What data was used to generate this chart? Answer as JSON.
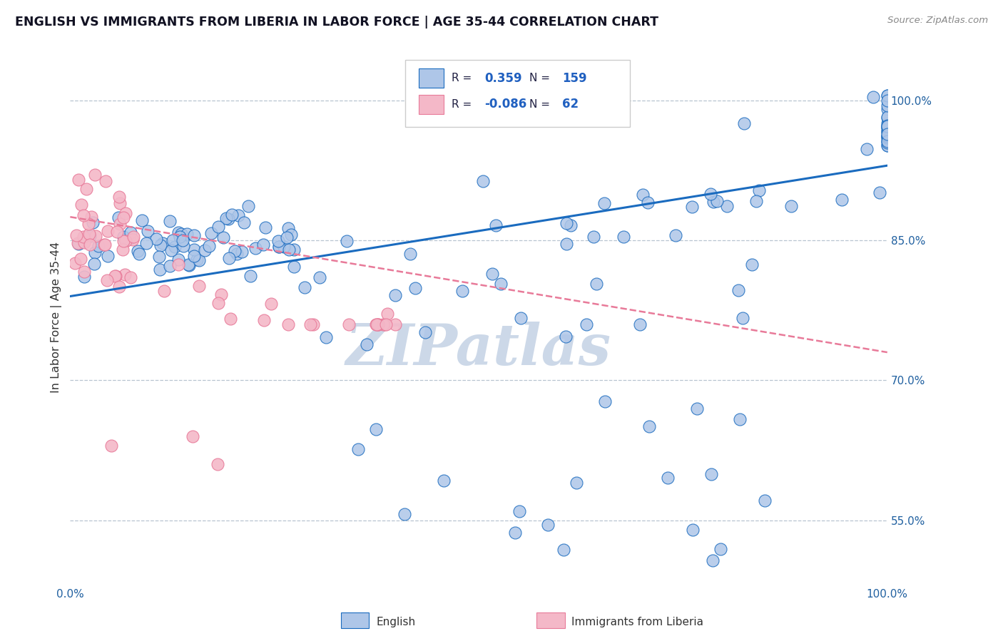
{
  "title": "ENGLISH VS IMMIGRANTS FROM LIBERIA IN LABOR FORCE | AGE 35-44 CORRELATION CHART",
  "source_text": "Source: ZipAtlas.com",
  "ylabel": "In Labor Force | Age 35-44",
  "xlim": [
    0.0,
    1.0
  ],
  "ylim": [
    0.48,
    1.055
  ],
  "ytick_labels": [
    "55.0%",
    "70.0%",
    "85.0%",
    "100.0%"
  ],
  "ytick_values": [
    0.55,
    0.7,
    0.85,
    1.0
  ],
  "english_color": "#aec6e8",
  "liberia_color": "#f4b8c8",
  "trend_english_color": "#1a6bbf",
  "trend_liberia_color": "#e87a99",
  "watermark_text": "ZIPatlas",
  "watermark_color": "#ccd8e8",
  "english_trend_x0": 0.0,
  "english_trend_y0": 0.79,
  "english_trend_x1": 1.0,
  "english_trend_y1": 0.93,
  "liberia_trend_x0": 0.0,
  "liberia_trend_y0": 0.875,
  "liberia_trend_x1": 1.0,
  "liberia_trend_y1": 0.73,
  "legend_r_english": "0.359",
  "legend_n_english": "159",
  "legend_r_liberia": "-0.086",
  "legend_n_liberia": "62"
}
